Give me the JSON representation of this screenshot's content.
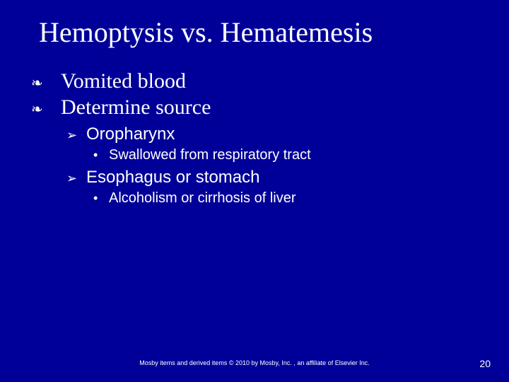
{
  "background_color": "#000099",
  "text_color": "#ffffff",
  "title": {
    "text": "Hemoptysis vs. Hematemesis",
    "font_family": "Times New Roman",
    "font_size_pt": 40,
    "font_weight": 400
  },
  "level1": {
    "bullet_char": "❧",
    "font_family": "Times New Roman",
    "font_size_pt": 30,
    "items": [
      "Vomited blood",
      "Determine source"
    ]
  },
  "level2": {
    "bullet_char": "➢",
    "font_family": "Arial",
    "font_size_pt": 24,
    "items": [
      "Oropharynx",
      "Esophagus or stomach"
    ]
  },
  "level3": {
    "bullet_char": "•",
    "font_family": "Arial",
    "font_size_pt": 20,
    "groups": [
      [
        "Swallowed from respiratory tract"
      ],
      [
        "Alcoholism or cirrhosis of liver"
      ]
    ]
  },
  "footer": {
    "text": "Mosby items and derived items © 2010 by Mosby, Inc. , an affiliate of Elsevier Inc.",
    "font_size_pt": 9
  },
  "page_number": {
    "text": "20",
    "font_size_pt": 14
  }
}
